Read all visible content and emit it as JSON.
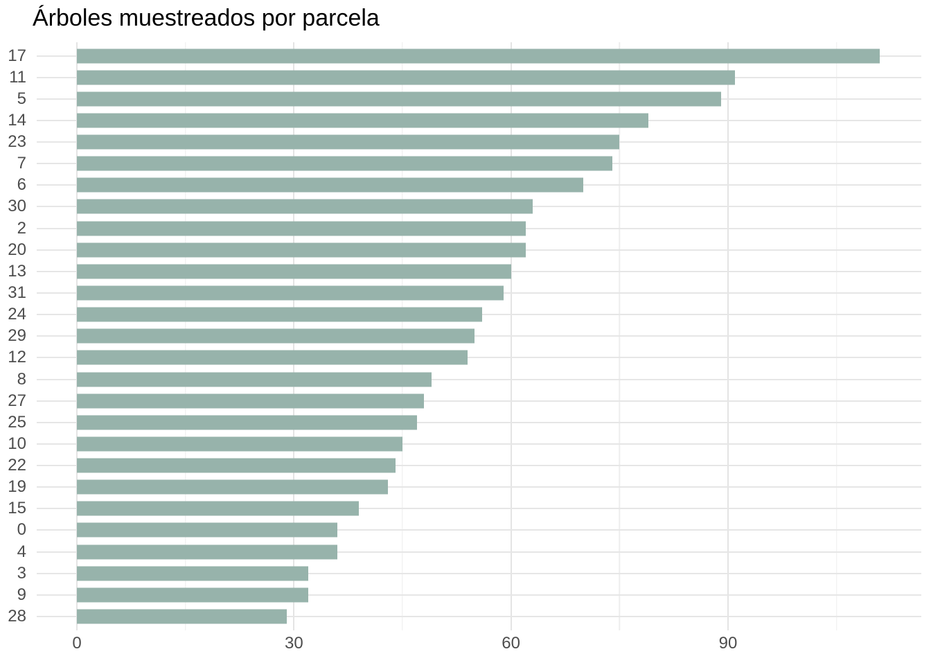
{
  "title": "Árboles muestreados por parcela",
  "colors": {
    "bar_fill": "#97b3ab",
    "grid_major": "#e4e4e4",
    "grid_minor": "#ededed",
    "axis_text": "#4d4d4d",
    "title_text": "#000000",
    "background": "#ffffff"
  },
  "chart_data": {
    "type": "bar",
    "orientation": "horizontal",
    "title": "Árboles muestreados por parcela",
    "xlabel": "",
    "ylabel": "",
    "categories": [
      "17",
      "11",
      "5",
      "14",
      "23",
      "7",
      "6",
      "30",
      "2",
      "20",
      "13",
      "31",
      "24",
      "29",
      "12",
      "8",
      "27",
      "25",
      "10",
      "22",
      "19",
      "15",
      "0",
      "4",
      "3",
      "9",
      "28"
    ],
    "values": [
      111,
      91,
      89,
      79,
      75,
      74,
      70,
      63,
      62,
      62,
      60,
      59,
      56,
      55,
      54,
      49,
      48,
      47,
      45,
      44,
      43,
      39,
      36,
      36,
      32,
      32,
      29
    ],
    "x_ticks": [
      0,
      30,
      60,
      90
    ],
    "x_minor_ticks": [
      15,
      45,
      75,
      105
    ],
    "xlim": [
      -5.6,
      116.8
    ],
    "grid": true,
    "legend": false,
    "bar_color": "#97b3ab"
  }
}
